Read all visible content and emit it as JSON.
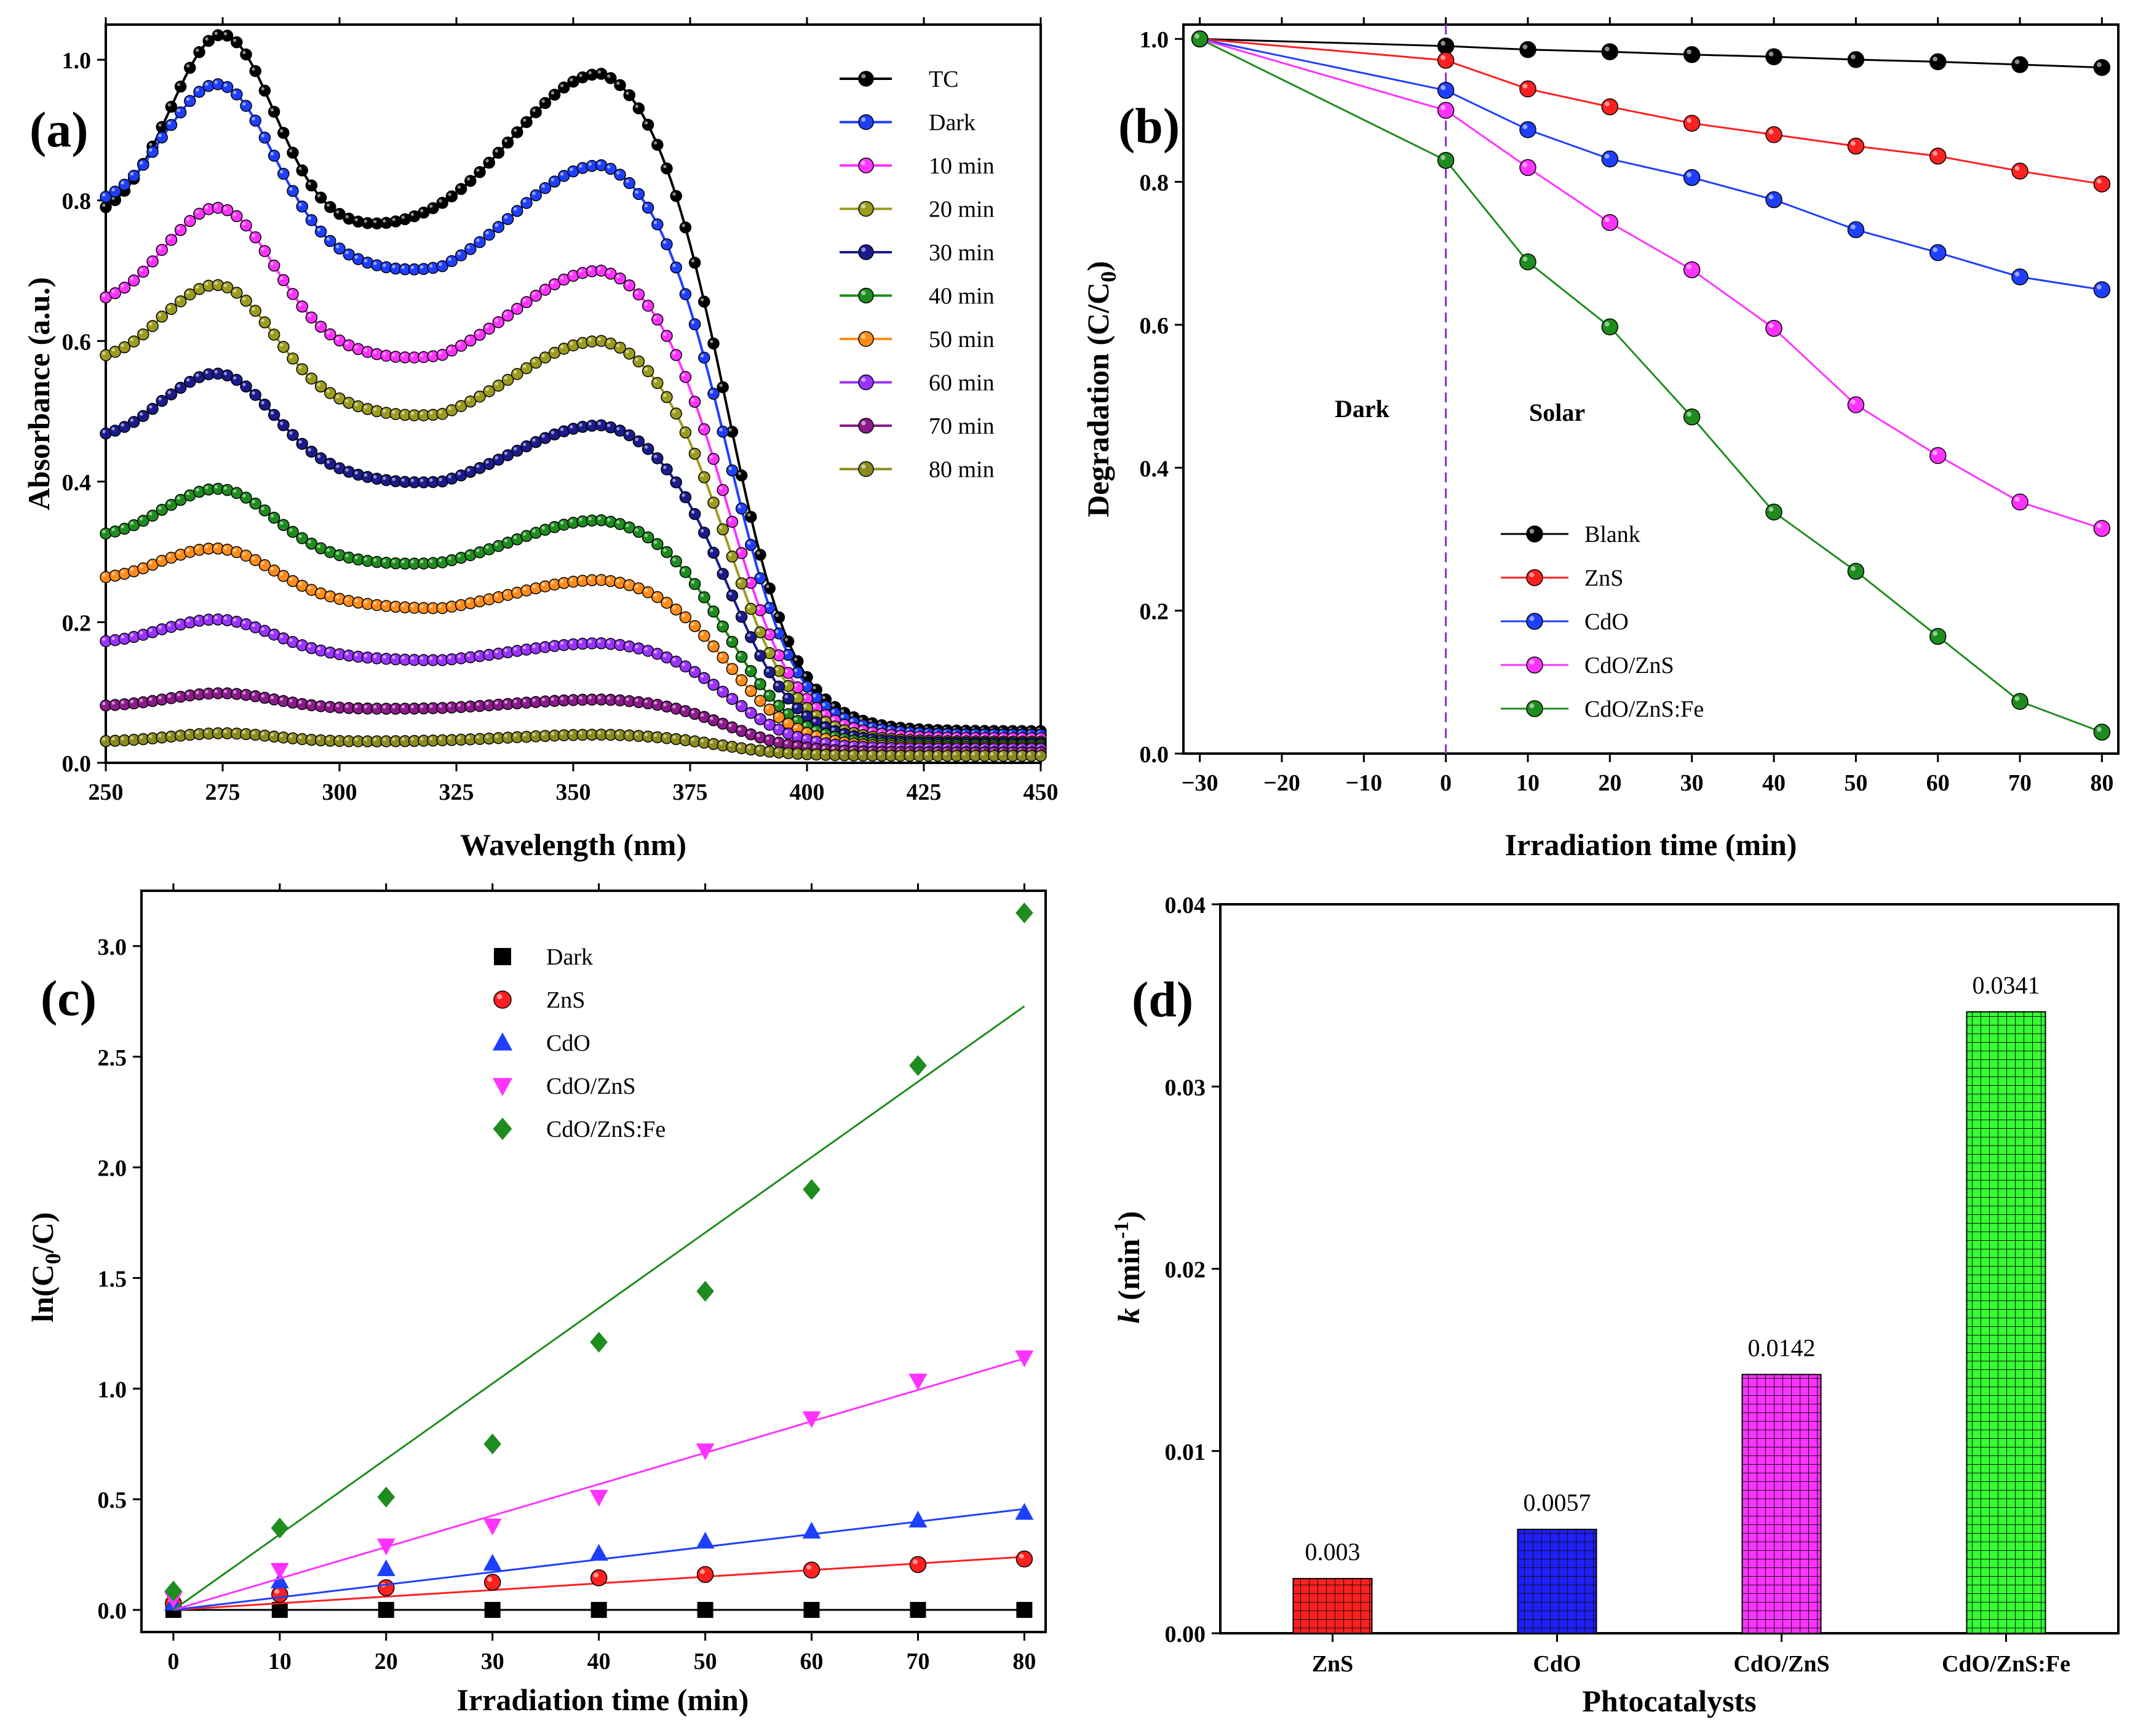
{
  "chart_data": [
    {
      "panel": "(a)",
      "type": "line",
      "xlabel": "Wavelength (nm)",
      "ylabel": "Absorbance (a.u.)",
      "xlim": [
        250,
        450
      ],
      "ylim": [
        0.0,
        1.05
      ],
      "xticks": [
        250,
        275,
        300,
        325,
        350,
        375,
        400,
        425,
        450
      ],
      "yticks": [
        0.0,
        0.2,
        0.4,
        0.6,
        0.8,
        1.0
      ],
      "series": [
        {
          "name": "TC",
          "color": "#000000",
          "base": 0.77,
          "peak1": 1.04,
          "valley": 0.75,
          "peak2": 0.98,
          "tail": 0.045
        },
        {
          "name": "Dark",
          "color": "#1f3fff",
          "base": 0.79,
          "peak1": 0.99,
          "valley": 0.67,
          "peak2": 0.85,
          "tail": 0.04
        },
        {
          "name": "10 min",
          "color": "#ff33ff",
          "base": 0.65,
          "peak1": 0.81,
          "valley": 0.55,
          "peak2": 0.7,
          "tail": 0.035
        },
        {
          "name": "20 min",
          "color": "#9b9b1e",
          "base": 0.57,
          "peak1": 0.7,
          "valley": 0.47,
          "peak2": 0.6,
          "tail": 0.03
        },
        {
          "name": "30 min",
          "color": "#1b1b8c",
          "base": 0.46,
          "peak1": 0.57,
          "valley": 0.38,
          "peak2": 0.48,
          "tail": 0.028
        },
        {
          "name": "40 min",
          "color": "#1e8c1e",
          "base": 0.32,
          "peak1": 0.4,
          "valley": 0.27,
          "peak2": 0.345,
          "tail": 0.025
        },
        {
          "name": "50 min",
          "color": "#ff8c1a",
          "base": 0.26,
          "peak1": 0.315,
          "valley": 0.21,
          "peak2": 0.26,
          "tail": 0.022
        },
        {
          "name": "60 min",
          "color": "#9933ff",
          "base": 0.17,
          "peak1": 0.21,
          "valley": 0.14,
          "peak2": 0.17,
          "tail": 0.02
        },
        {
          "name": "70 min",
          "color": "#8c1a8c",
          "base": 0.08,
          "peak1": 0.1,
          "valley": 0.075,
          "peak2": 0.09,
          "tail": 0.015
        },
        {
          "name": "80 min",
          "color": "#8c8c1e",
          "base": 0.03,
          "peak1": 0.042,
          "valley": 0.03,
          "peak2": 0.04,
          "tail": 0.01
        }
      ]
    },
    {
      "panel": "(b)",
      "type": "line",
      "xlabel": "Irradiation time (min)",
      "ylabel_main": "Degradation (C/C",
      "ylabel_sub": "0",
      "ylabel_end": ")",
      "xlim": [
        -32,
        82
      ],
      "ylim": [
        0.0,
        1.02
      ],
      "xticks": [
        -30,
        -20,
        -10,
        0,
        10,
        20,
        30,
        40,
        50,
        60,
        70,
        80
      ],
      "xtick_labels": [
        "−30",
        "−20",
        "−10",
        "0",
        "10",
        "20",
        "30",
        "40",
        "50",
        "60",
        "70",
        "80"
      ],
      "yticks": [
        0.0,
        0.2,
        0.4,
        0.6,
        0.8,
        1.0
      ],
      "annotations": {
        "dark": "Dark",
        "solar": "Solar"
      },
      "x": [
        -30,
        0,
        10,
        20,
        30,
        40,
        50,
        60,
        70,
        80
      ],
      "series": [
        {
          "name": "Blank",
          "color": "#000000",
          "values": [
            1.0,
            0.99,
            0.985,
            0.982,
            0.978,
            0.975,
            0.971,
            0.968,
            0.964,
            0.96
          ]
        },
        {
          "name": "ZnS",
          "color": "#ff2020",
          "values": [
            1.0,
            0.97,
            0.93,
            0.905,
            0.882,
            0.866,
            0.85,
            0.836,
            0.815,
            0.797
          ]
        },
        {
          "name": "CdO",
          "color": "#1f3fff",
          "values": [
            1.0,
            0.928,
            0.873,
            0.832,
            0.806,
            0.775,
            0.733,
            0.701,
            0.667,
            0.649
          ]
        },
        {
          "name": "CdO/ZnS",
          "color": "#ff33ff",
          "values": [
            1.0,
            0.9,
            0.82,
            0.743,
            0.677,
            0.595,
            0.488,
            0.417,
            0.352,
            0.315
          ]
        },
        {
          "name": "CdO/ZnS:Fe",
          "color": "#1e8c1e",
          "values": [
            1.0,
            0.83,
            0.688,
            0.597,
            0.471,
            0.338,
            0.255,
            0.164,
            0.073,
            0.03
          ]
        }
      ]
    },
    {
      "panel": "(c)",
      "type": "scatter",
      "xlabel": "Irradiation time (min)",
      "ylabel_main": "ln(C",
      "ylabel_sub": "0",
      "ylabel_end": "/C)",
      "xlim": [
        -3,
        82
      ],
      "ylim": [
        -0.1,
        3.25
      ],
      "xticks": [
        0,
        10,
        20,
        30,
        40,
        50,
        60,
        70,
        80
      ],
      "yticks": [
        0.0,
        0.5,
        1.0,
        1.5,
        2.0,
        2.5,
        3.0
      ],
      "ytick_labels": [
        "0.0",
        "0.5",
        "1.0",
        "1.5",
        "2.0",
        "2.5",
        "3.0"
      ],
      "x": [
        0,
        10,
        20,
        30,
        40,
        50,
        60,
        70,
        80
      ],
      "series": [
        {
          "name": "Dark",
          "color": "#000000",
          "marker": "square",
          "values": [
            0,
            0,
            0,
            0,
            0,
            0,
            0,
            0,
            0
          ],
          "fit": [
            0,
            0.0
          ]
        },
        {
          "name": "ZnS",
          "color": "#ff2020",
          "marker": "circle",
          "values": [
            0.03,
            0.07,
            0.1,
            0.125,
            0.145,
            0.16,
            0.18,
            0.205,
            0.23
          ],
          "fit": [
            0.0,
            0.003
          ]
        },
        {
          "name": "CdO",
          "color": "#1f3fff",
          "marker": "triangle-up",
          "values": [
            0.03,
            0.13,
            0.185,
            0.21,
            0.255,
            0.31,
            0.355,
            0.405,
            0.44
          ],
          "fit": [
            0.0,
            0.0057
          ]
        },
        {
          "name": "CdO/ZnS",
          "color": "#ff33ff",
          "marker": "triangle-down",
          "values": [
            0.05,
            0.18,
            0.29,
            0.38,
            0.51,
            0.72,
            0.865,
            1.035,
            1.14
          ],
          "fit": [
            0.0,
            0.0142
          ]
        },
        {
          "name": "CdO/ZnS:Fe",
          "color": "#1e8c1e",
          "marker": "diamond",
          "values": [
            0.085,
            0.37,
            0.51,
            0.75,
            1.21,
            1.44,
            1.9,
            2.46,
            3.15
          ],
          "fit": [
            0.0,
            0.0341
          ]
        }
      ]
    },
    {
      "panel": "(d)",
      "type": "bar",
      "xlabel": "Phtocatalysts",
      "ylabel_k": "k",
      "ylabel_unit": " (min",
      "ylabel_exp": "-1",
      "ylabel_end": ")",
      "ylim": [
        0.0,
        0.04
      ],
      "yticks": [
        0.0,
        0.01,
        0.02,
        0.03,
        0.04
      ],
      "ytick_labels": [
        "0.00",
        "0.01",
        "0.02",
        "0.03",
        "0.04"
      ],
      "categories": [
        "ZnS",
        "CdO",
        "CdO/ZnS",
        "CdO/ZnS:Fe"
      ],
      "values": [
        0.003,
        0.0057,
        0.0142,
        0.0341
      ],
      "value_labels": [
        "0.003",
        "0.0057",
        "0.0142",
        "0.0341"
      ],
      "colors": [
        "#ff1f1f",
        "#1f1fff",
        "#ff33ff",
        "#33ff33"
      ]
    }
  ]
}
